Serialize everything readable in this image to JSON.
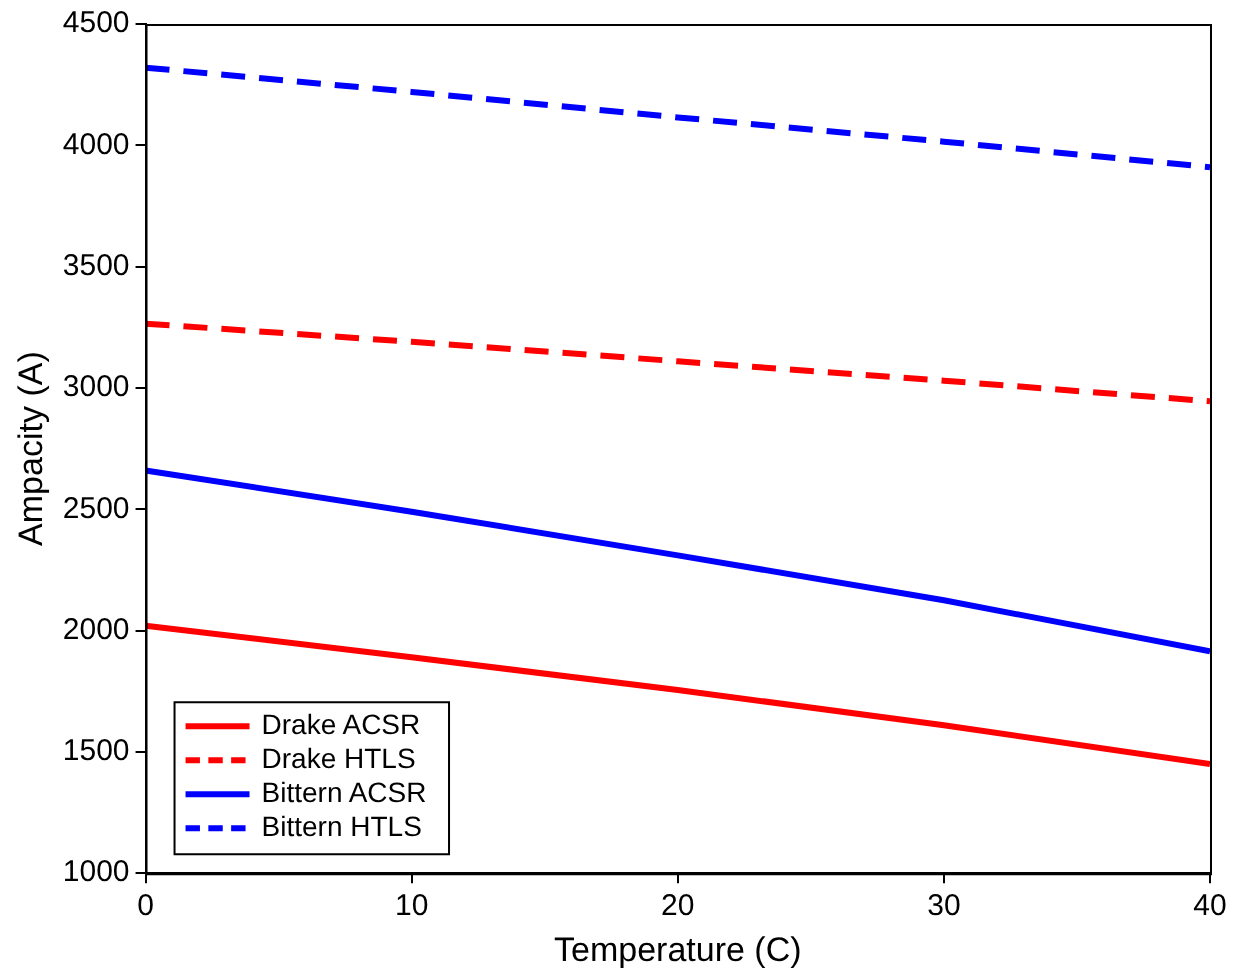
{
  "chart_data": {
    "type": "line",
    "xlabel": "Temperature (C)",
    "ylabel": "Ampacity (A)",
    "x": [
      0,
      10,
      20,
      30,
      40
    ],
    "series": [
      {
        "name": "Drake ACSR",
        "color": "#ff0000",
        "line_style": "solid",
        "values": [
          2020,
          1890,
          1755,
          1610,
          1450
        ]
      },
      {
        "name": "Drake HTLS",
        "color": "#ff0000",
        "line_style": "dashed",
        "values": [
          3265,
          3190,
          3110,
          3030,
          2945
        ]
      },
      {
        "name": "Bittern ACSR",
        "color": "#0000ff",
        "line_style": "solid",
        "values": [
          2660,
          2490,
          2310,
          2125,
          1915
        ]
      },
      {
        "name": "Bittern HTLS",
        "color": "#0000ff",
        "line_style": "dashed",
        "values": [
          4320,
          4220,
          4115,
          4015,
          3910
        ]
      }
    ],
    "xlim": [
      0,
      40
    ],
    "xticks": [
      0,
      10,
      20,
      30,
      40
    ],
    "ylim": [
      1000,
      4500
    ],
    "yticks": [
      1000,
      1500,
      2000,
      2500,
      3000,
      3500,
      4000,
      4500
    ],
    "grid": false,
    "legend": "bottom left",
    "marker": "none"
  }
}
